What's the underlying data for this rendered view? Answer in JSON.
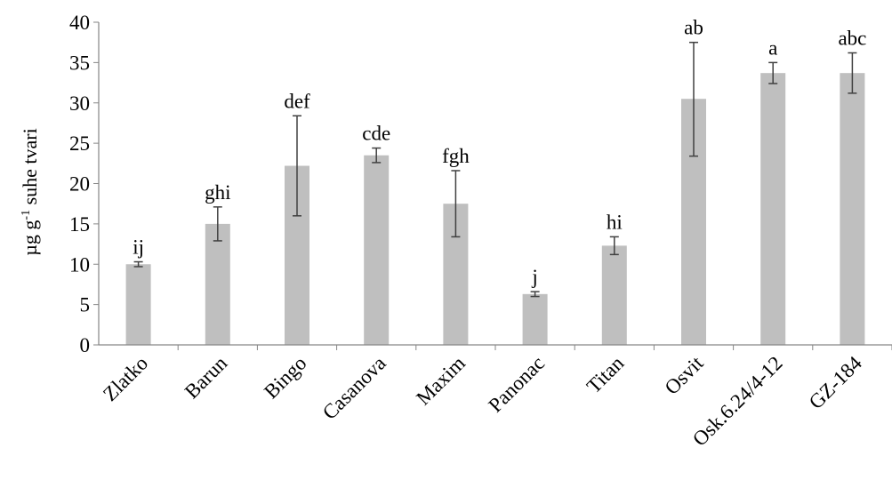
{
  "chart_data": {
    "type": "bar",
    "title": "",
    "xlabel": "",
    "ylabel": {
      "main": "µg g",
      "superscript": "-1",
      "rest": " suhe tvari"
    },
    "ylim": [
      0,
      40
    ],
    "yticks": [
      0,
      5,
      10,
      15,
      20,
      25,
      30,
      35,
      40
    ],
    "grid": false,
    "legend": "none",
    "categories": [
      "Zlatko",
      "Barun",
      "Bingo",
      "Casanova",
      "Maxim",
      "Panonac",
      "Titan",
      "Osvit",
      "Osk.6.24/4-12",
      "GZ-184"
    ],
    "values": [
      10.0,
      15.0,
      22.2,
      23.5,
      17.5,
      6.3,
      12.3,
      30.5,
      33.7,
      33.7
    ],
    "error_low": [
      9.7,
      12.9,
      16.0,
      22.6,
      13.4,
      6.0,
      11.2,
      23.4,
      32.4,
      31.2
    ],
    "error_high": [
      10.3,
      17.1,
      28.4,
      24.4,
      21.6,
      6.6,
      13.4,
      37.5,
      35.0,
      36.2
    ],
    "significance_letters": [
      "ij",
      "ghi",
      "def",
      "cde",
      "fgh",
      "j",
      "hi",
      "ab",
      "a",
      "abc"
    ],
    "colors": {
      "bar": "#bfbfbf",
      "error_bar": "#404040",
      "axis": "#868686",
      "text": "#000000"
    }
  }
}
